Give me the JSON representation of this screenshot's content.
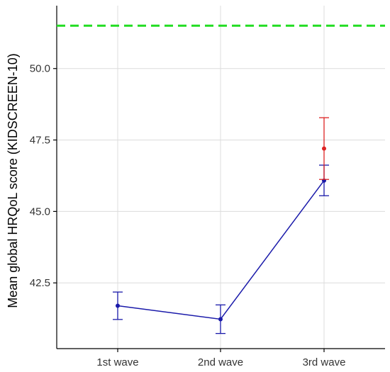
{
  "chart_data": {
    "type": "line",
    "title": "",
    "xlabel": "",
    "ylabel": "Mean global HRQoL score (KIDSCREEN-10)",
    "categories": [
      "1st wave",
      "2nd wave",
      "3rd wave"
    ],
    "ylim": [
      40.2,
      52.2
    ],
    "yticks": [
      42.5,
      45.0,
      47.5,
      50.0
    ],
    "ytick_labels": [
      "42.5",
      "45.0",
      "47.5",
      "50.0"
    ],
    "grid": true,
    "legend": "none",
    "reference_line": {
      "value": 51.5,
      "style": "dashed",
      "color": "#22dd22"
    },
    "series": [
      {
        "color": "#1a1aaa",
        "connected": true,
        "points": [
          {
            "category": "1st wave",
            "y": 41.7,
            "lower": 41.22,
            "upper": 42.18
          },
          {
            "category": "2nd wave",
            "y": 41.23,
            "lower": 40.73,
            "upper": 41.73
          },
          {
            "category": "3rd wave",
            "y": 46.08,
            "lower": 45.55,
            "upper": 46.62
          }
        ]
      },
      {
        "color": "#dd2222",
        "connected": false,
        "points": [
          {
            "category": "3rd wave",
            "y": 47.2,
            "lower": 46.12,
            "upper": 48.28
          }
        ]
      }
    ]
  }
}
